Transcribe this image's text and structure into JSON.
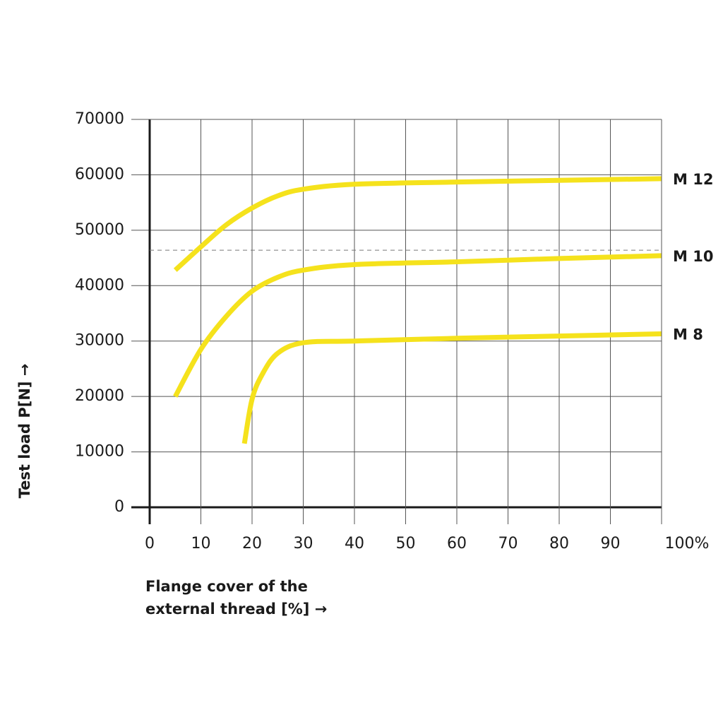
{
  "chart_data": {
    "type": "line",
    "ylabel": "Test load P[N] →",
    "xlabel": [
      "Flange cover of the",
      "external thread [%] →"
    ],
    "xlim": [
      0,
      100
    ],
    "xticks": [
      0,
      10,
      20,
      30,
      40,
      50,
      60,
      70,
      80,
      90,
      {
        "value": 100,
        "label": "100%"
      }
    ],
    "ylim": [
      0,
      70000
    ],
    "yticks": [
      0,
      10000,
      20000,
      30000,
      40000,
      50000,
      60000,
      70000
    ],
    "grid": true,
    "reference_line": 46400,
    "series": [
      {
        "name": "M 12",
        "color": "#f5e21c",
        "x": [
          5,
          10,
          15,
          20,
          25,
          30,
          40,
          60,
          80,
          100
        ],
        "values": [
          42800,
          47000,
          51000,
          54000,
          56200,
          57400,
          58300,
          58700,
          59000,
          59300
        ]
      },
      {
        "name": "M 10",
        "color": "#f5e21c",
        "x": [
          5,
          10,
          15,
          20,
          25,
          30,
          40,
          60,
          80,
          100
        ],
        "values": [
          20000,
          28500,
          34500,
          39000,
          41500,
          42800,
          43800,
          44300,
          44900,
          45400
        ]
      },
      {
        "name": "M 8",
        "color": "#f5e21c",
        "x": [
          18.5,
          20,
          22,
          25,
          30,
          40,
          60,
          80,
          100
        ],
        "values": [
          11500,
          19500,
          24000,
          27800,
          29700,
          30000,
          30500,
          30900,
          31300
        ]
      }
    ]
  }
}
